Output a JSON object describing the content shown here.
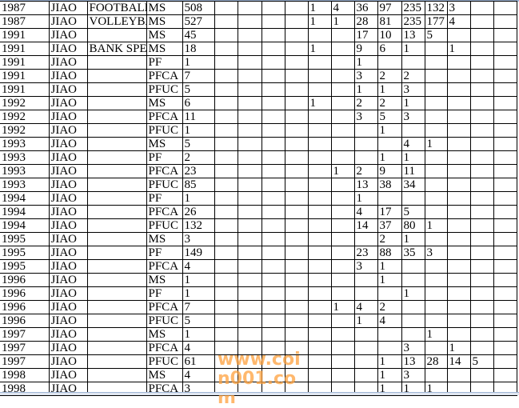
{
  "sheet": {
    "rows": [
      [
        "1987",
        "JIAO",
        "FOOTBALL",
        "MS",
        "508",
        "",
        "",
        "",
        "",
        "1",
        "4",
        "36",
        "97",
        "235",
        "132",
        "3",
        "",
        ""
      ],
      [
        "1987",
        "JIAO",
        "VOLLEYBAL",
        "MS",
        "527",
        "",
        "",
        "",
        "",
        "1",
        "1",
        "28",
        "81",
        "235",
        "177",
        "4",
        "",
        ""
      ],
      [
        "1991",
        "JIAO",
        "",
        "MS",
        "45",
        "",
        "",
        "",
        "",
        "",
        "",
        "17",
        "10",
        "13",
        "5",
        "",
        "",
        ""
      ],
      [
        "1991",
        "JIAO",
        "BANK SPEC",
        "MS",
        "18",
        "",
        "",
        "",
        "",
        "1",
        "",
        "9",
        "6",
        "1",
        "",
        "1",
        "",
        ""
      ],
      [
        "1991",
        "JIAO",
        "",
        "PF",
        "1",
        "",
        "",
        "",
        "",
        "",
        "",
        "1",
        "",
        "",
        "",
        "",
        "",
        ""
      ],
      [
        "1991",
        "JIAO",
        "",
        "PFCA",
        "7",
        "",
        "",
        "",
        "",
        "",
        "",
        "3",
        "2",
        "2",
        "",
        "",
        "",
        ""
      ],
      [
        "1991",
        "JIAO",
        "",
        "PFUC",
        "5",
        "",
        "",
        "",
        "",
        "",
        "",
        "1",
        "1",
        "3",
        "",
        "",
        "",
        ""
      ],
      [
        "1992",
        "JIAO",
        "",
        "MS",
        "6",
        "",
        "",
        "",
        "",
        "1",
        "",
        "2",
        "2",
        "1",
        "",
        "",
        "",
        ""
      ],
      [
        "1992",
        "JIAO",
        "",
        "PFCA",
        "11",
        "",
        "",
        "",
        "",
        "",
        "",
        "3",
        "5",
        "3",
        "",
        "",
        "",
        ""
      ],
      [
        "1992",
        "JIAO",
        "",
        "PFUC",
        "1",
        "",
        "",
        "",
        "",
        "",
        "",
        "",
        "1",
        "",
        "",
        "",
        "",
        ""
      ],
      [
        "1993",
        "JIAO",
        "",
        "MS",
        "5",
        "",
        "",
        "",
        "",
        "",
        "",
        "",
        "",
        "4",
        "1",
        "",
        "",
        ""
      ],
      [
        "1993",
        "JIAO",
        "",
        "PF",
        "2",
        "",
        "",
        "",
        "",
        "",
        "",
        "",
        "1",
        "1",
        "",
        "",
        "",
        ""
      ],
      [
        "1993",
        "JIAO",
        "",
        "PFCA",
        "23",
        "",
        "",
        "",
        "",
        "",
        "1",
        "2",
        "9",
        "11",
        "",
        "",
        "",
        ""
      ],
      [
        "1993",
        "JIAO",
        "",
        "PFUC",
        "85",
        "",
        "",
        "",
        "",
        "",
        "",
        "13",
        "38",
        "34",
        "",
        "",
        "",
        ""
      ],
      [
        "1994",
        "JIAO",
        "",
        "PF",
        "1",
        "",
        "",
        "",
        "",
        "",
        "",
        "1",
        "",
        "",
        "",
        "",
        "",
        ""
      ],
      [
        "1994",
        "JIAO",
        "",
        "PFCA",
        "26",
        "",
        "",
        "",
        "",
        "",
        "",
        "4",
        "17",
        "5",
        "",
        "",
        "",
        ""
      ],
      [
        "1994",
        "JIAO",
        "",
        "PFUC",
        "132",
        "",
        "",
        "",
        "",
        "",
        "",
        "14",
        "37",
        "80",
        "1",
        "",
        "",
        ""
      ],
      [
        "1995",
        "JIAO",
        "",
        "MS",
        "3",
        "",
        "",
        "",
        "",
        "",
        "",
        "",
        "2",
        "1",
        "",
        "",
        "",
        ""
      ],
      [
        "1995",
        "JIAO",
        "",
        "PF",
        "149",
        "",
        "",
        "",
        "",
        "",
        "",
        "23",
        "88",
        "35",
        "3",
        "",
        "",
        ""
      ],
      [
        "1995",
        "JIAO",
        "",
        "PFCA",
        "4",
        "",
        "",
        "",
        "",
        "",
        "",
        "3",
        "1",
        "",
        "",
        "",
        "",
        ""
      ],
      [
        "1996",
        "JIAO",
        "",
        "MS",
        "1",
        "",
        "",
        "",
        "",
        "",
        "",
        "",
        "1",
        "",
        "",
        "",
        "",
        ""
      ],
      [
        "1996",
        "JIAO",
        "",
        "PF",
        "1",
        "",
        "",
        "",
        "",
        "",
        "",
        "",
        "",
        "1",
        "",
        "",
        "",
        ""
      ],
      [
        "1996",
        "JIAO",
        "",
        "PFCA",
        "7",
        "",
        "",
        "",
        "",
        "",
        "1",
        "4",
        "2",
        "",
        "",
        "",
        "",
        ""
      ],
      [
        "1996",
        "JIAO",
        "",
        "PFUC",
        "5",
        "",
        "",
        "",
        "",
        "",
        "",
        "1",
        "4",
        "",
        "",
        "",
        "",
        ""
      ],
      [
        "1997",
        "JIAO",
        "",
        "MS",
        "1",
        "",
        "",
        "",
        "",
        "",
        "",
        "",
        "",
        "",
        "1",
        "",
        "",
        ""
      ],
      [
        "1997",
        "JIAO",
        "",
        "PFCA",
        "4",
        "",
        "",
        "",
        "",
        "",
        "",
        "",
        "",
        "3",
        "",
        "1",
        "",
        ""
      ],
      [
        "1997",
        "JIAO",
        "",
        "PFUC",
        "61",
        "",
        "",
        "",
        "",
        "",
        "",
        "",
        "1",
        "13",
        "28",
        "14",
        "5",
        ""
      ],
      [
        "1998",
        "JIAO",
        "",
        "MS",
        "4",
        "",
        "",
        "",
        "",
        "",
        "",
        "",
        "1",
        "3",
        "",
        "",
        "",
        ""
      ],
      [
        "1998",
        "JIAO",
        "",
        "PFCA",
        "3",
        "",
        "",
        "",
        "",
        "",
        "",
        "",
        "1",
        "1",
        "1",
        "",
        "",
        ""
      ]
    ]
  },
  "watermark": "www.coin001.com",
  "colors": {
    "grid": "#000000",
    "watermark": "#ffa03c",
    "frame": "#9fb6d6"
  }
}
